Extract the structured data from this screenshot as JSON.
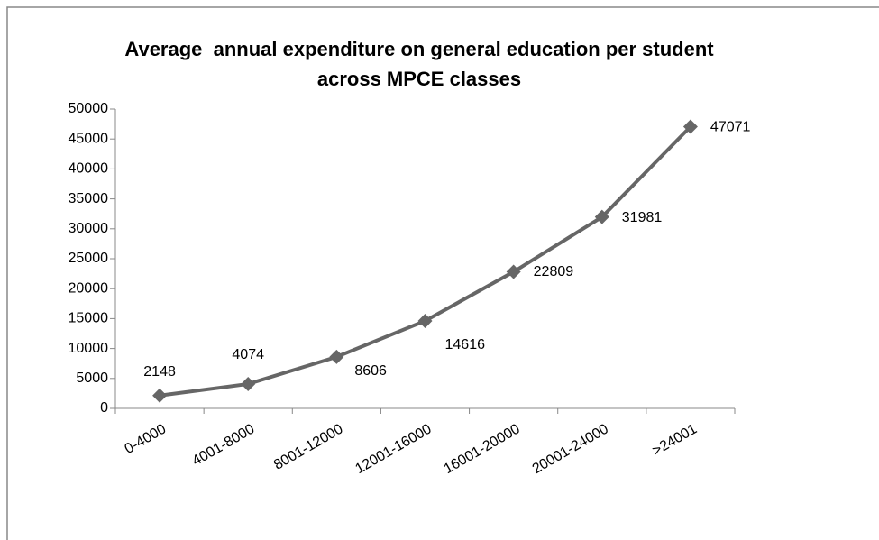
{
  "chart_data": {
    "type": "line",
    "title": "Average  annual expenditure on general education per student across MPCE classes",
    "categories": [
      "0-4000",
      "4001-8000",
      "8001-12000",
      "12001-16000",
      "16001-20000",
      "20001-24000",
      ">24001"
    ],
    "values": [
      2148,
      4074,
      8606,
      14616,
      22809,
      31981,
      47071
    ],
    "color": "#666666",
    "ylim": [
      0,
      50000
    ],
    "yticks": [
      0,
      5000,
      10000,
      15000,
      20000,
      25000,
      30000,
      35000,
      40000,
      45000,
      50000
    ],
    "grid": false
  }
}
